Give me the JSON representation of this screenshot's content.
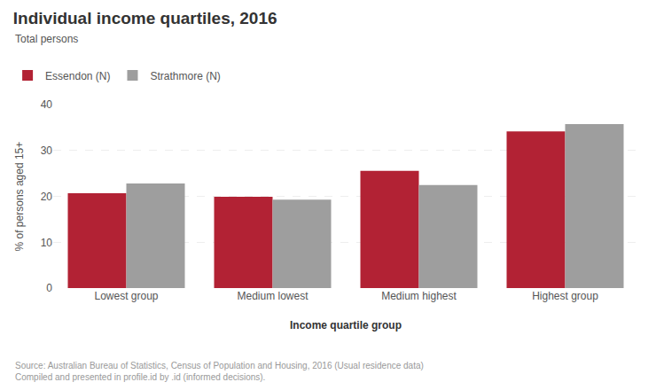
{
  "chart_data": {
    "type": "bar",
    "title": "Individual income quartiles, 2016",
    "subtitle": "Total persons",
    "categories": [
      "Lowest group",
      "Medium lowest",
      "Medium highest",
      "Highest group"
    ],
    "series": [
      {
        "name": "Essendon (N)",
        "color": "#b22234",
        "values": [
          20.7,
          19.9,
          25.6,
          34.2
        ]
      },
      {
        "name": "Strathmore (N)",
        "color": "#9e9e9e",
        "values": [
          22.8,
          19.3,
          22.5,
          35.8
        ]
      }
    ],
    "xlabel": "Income quartile group",
    "ylabel": "% of persons aged 15+",
    "ylim": [
      0,
      40
    ],
    "yticks": [
      0,
      10,
      20,
      30,
      40
    ],
    "grid": true,
    "legend": "top",
    "annotations": [
      "Source: Australian Bureau of Statistics, Census of Population and Housing, 2016 (Usual residence data)\nCompiled and presented in profile.id by .id (informed decisions)."
    ]
  }
}
